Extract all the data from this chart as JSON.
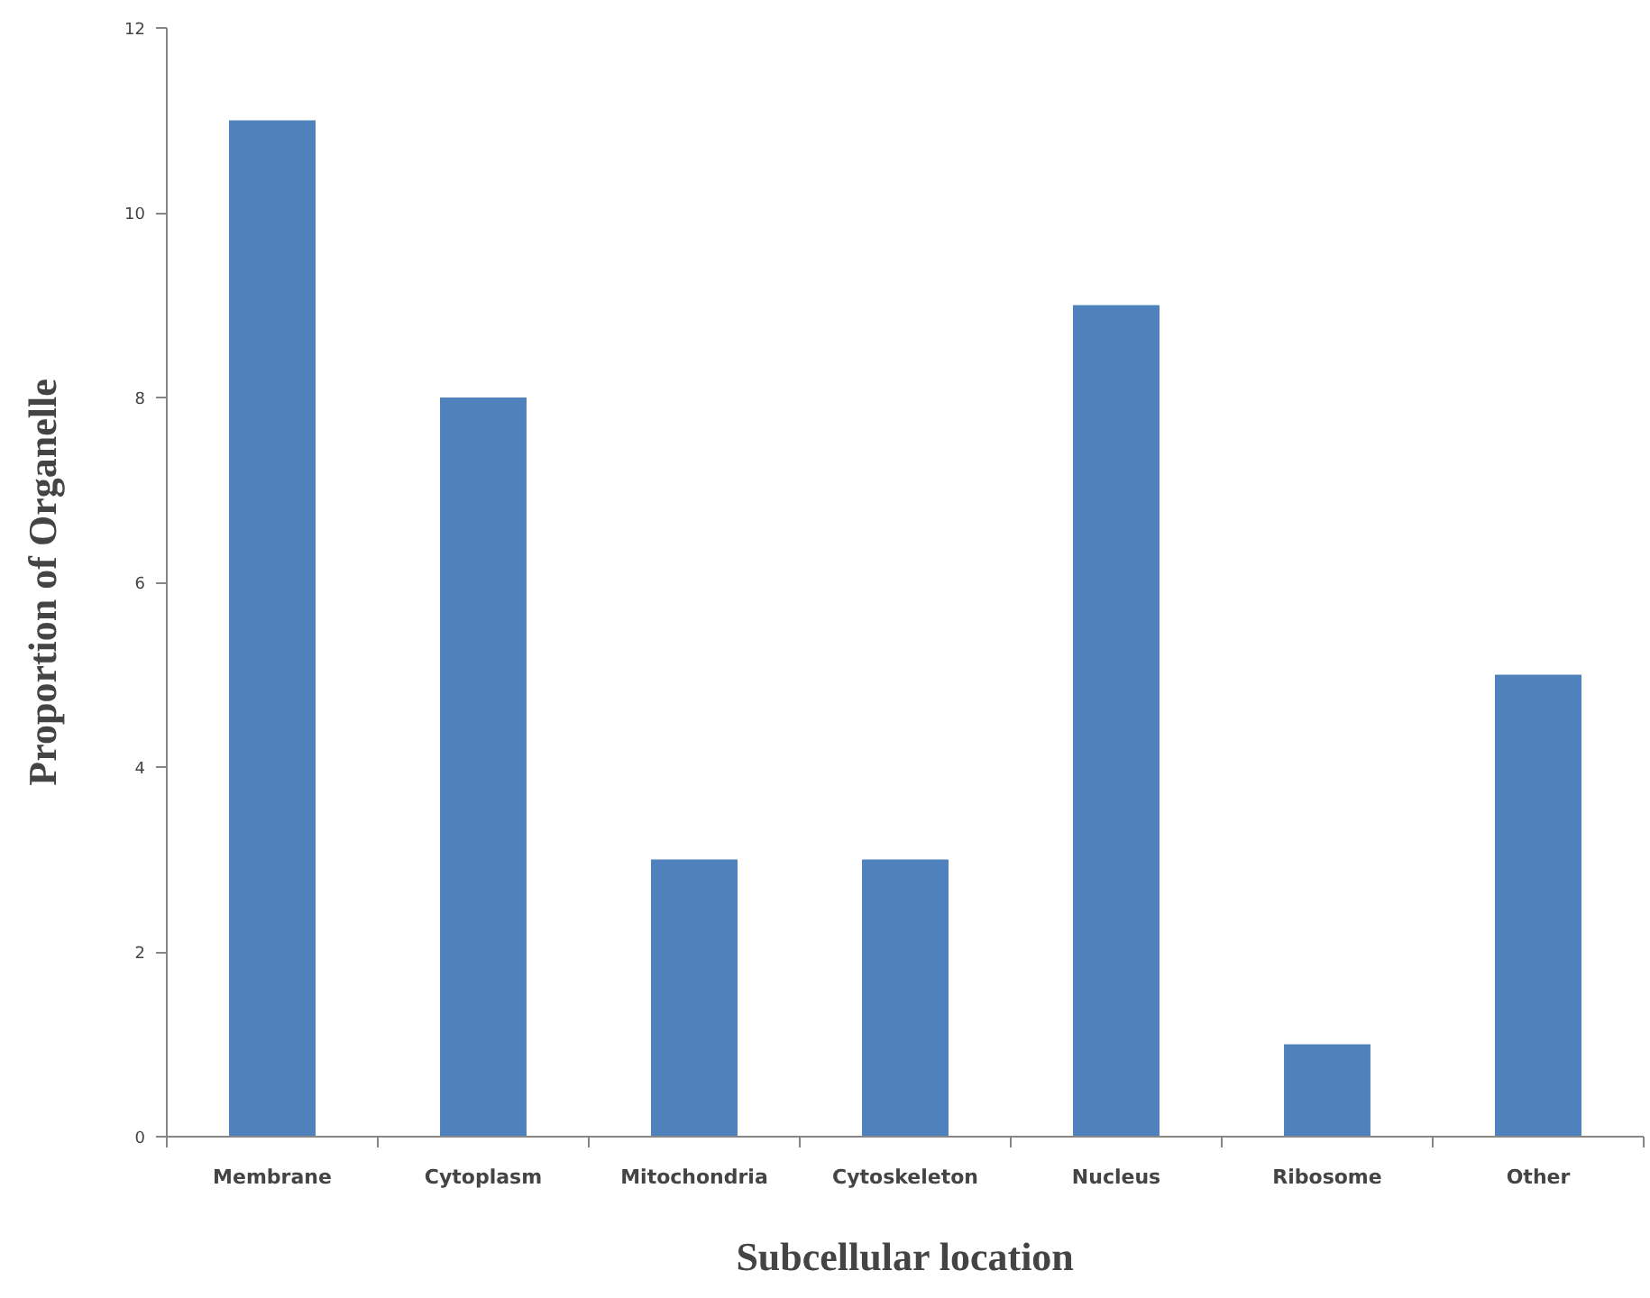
{
  "chart_data": {
    "type": "bar",
    "xlabel": "Subcellular location",
    "ylabel": "Proportion of Organelle",
    "categories": [
      "Membrane",
      "Cytoplasm",
      "Mitochondria",
      "Cytoskeleton",
      "Nucleus",
      "Ribosome",
      "Other"
    ],
    "values": [
      11,
      8,
      3,
      3,
      9,
      1,
      5
    ],
    "color": "#4f81bd",
    "ylim": [
      0,
      12
    ],
    "yticks": [
      0,
      2,
      4,
      6,
      8,
      10,
      12
    ]
  }
}
